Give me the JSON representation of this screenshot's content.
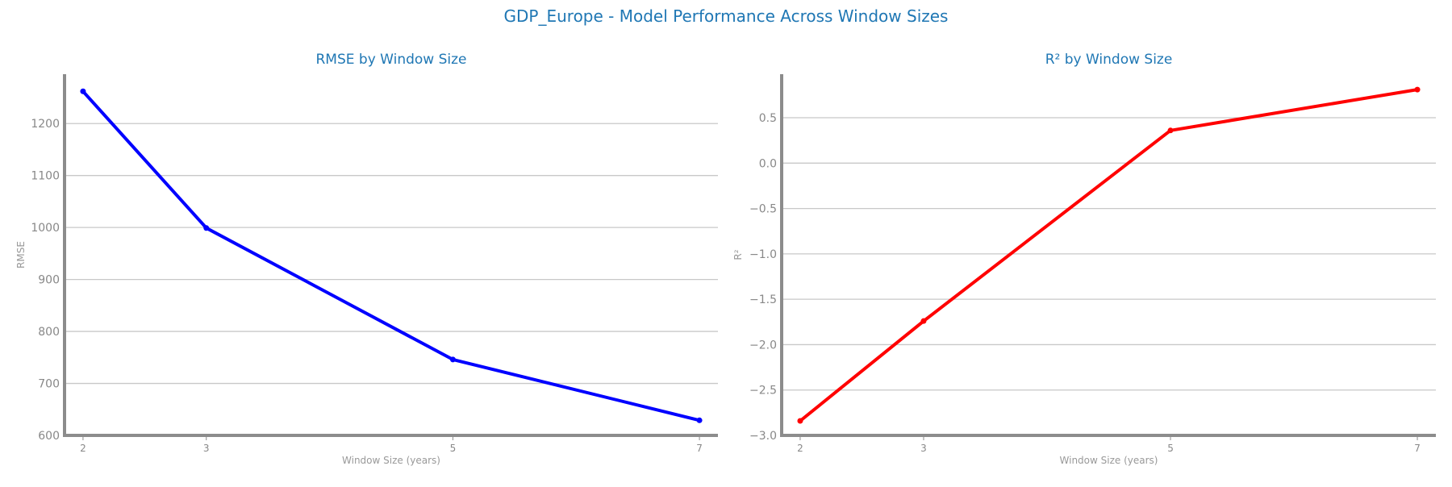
{
  "suptitle": "GDP_Europe - Model Performance Across Window Sizes",
  "colors": {
    "title": "#1f77b4",
    "axis": "#8c8c8c",
    "grid": "#c8c8c8",
    "tick_text": "#888888"
  },
  "chart_data": [
    {
      "type": "line",
      "title": "RMSE by Window Size",
      "xlabel": "Window Size (years)",
      "ylabel": "RMSE",
      "categories": [
        "2",
        "3",
        "5",
        "7"
      ],
      "x_positions": [
        2,
        3,
        5,
        7
      ],
      "xlim": [
        1.85,
        7.15
      ],
      "ylim": [
        600,
        1295
      ],
      "yticks": [
        600,
        700,
        800,
        900,
        1000,
        1100,
        1200
      ],
      "ytick_labels": [
        "600",
        "700",
        "800",
        "900",
        "1000",
        "1100",
        "1200"
      ],
      "grid": true,
      "series": [
        {
          "values": [
            1262,
            999,
            746,
            629
          ],
          "color": "#0000ff"
        }
      ]
    },
    {
      "type": "line",
      "title": "R² by Window Size",
      "xlabel": "Window Size (years)",
      "ylabel": "R²",
      "categories": [
        "2",
        "3",
        "5",
        "7"
      ],
      "x_positions": [
        2,
        3,
        5,
        7
      ],
      "xlim": [
        1.85,
        7.15
      ],
      "ylim": [
        -3.0,
        0.98
      ],
      "yticks": [
        -3.0,
        -2.5,
        -2.0,
        -1.5,
        -1.0,
        -0.5,
        0.0,
        0.5
      ],
      "ytick_labels": [
        "−3.0",
        "−2.5",
        "−2.0",
        "−1.5",
        "−1.0",
        "−0.5",
        "0.0",
        "0.5"
      ],
      "grid": true,
      "series": [
        {
          "values": [
            -2.84,
            -1.74,
            0.36,
            0.81
          ],
          "color": "#ff0000"
        }
      ]
    }
  ]
}
